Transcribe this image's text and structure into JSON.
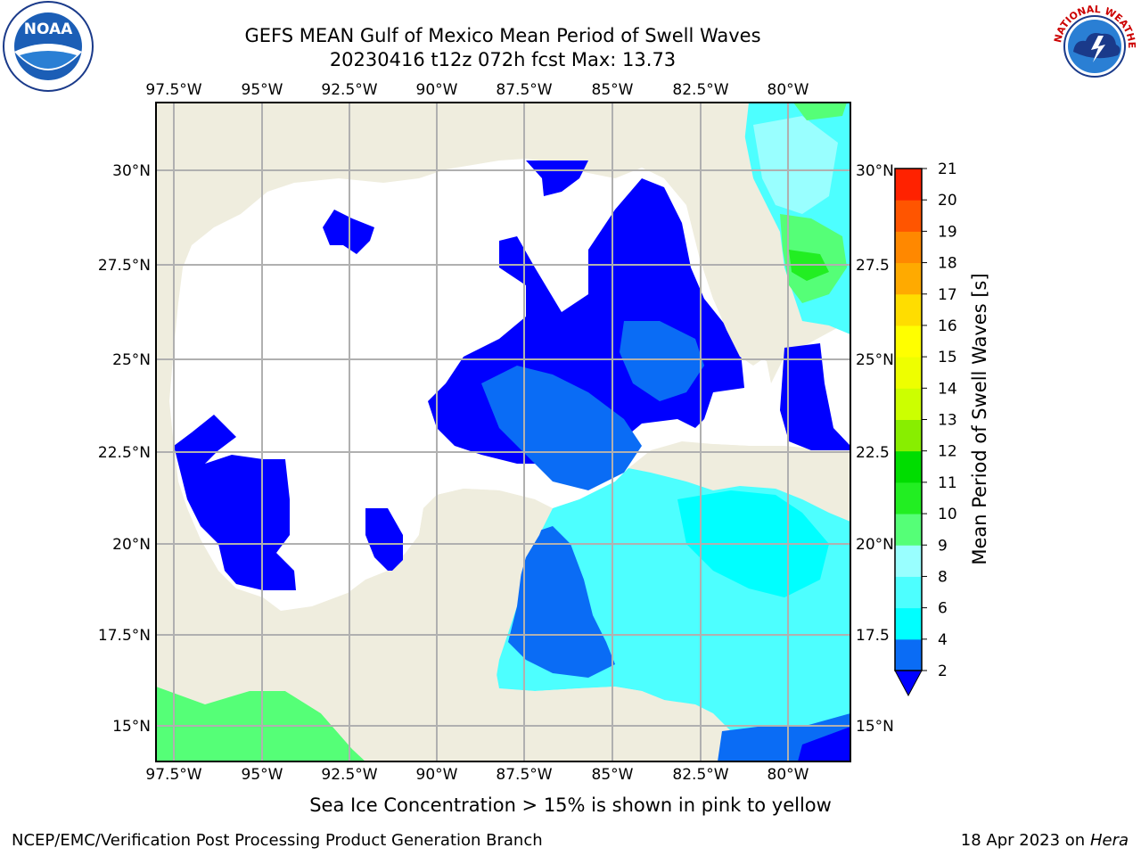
{
  "title": {
    "line1": "GEFS MEAN Gulf of Mexico Mean Period of Swell Waves",
    "line2": "20230416 t12z 072h fcst    Max: 13.73"
  },
  "logos": {
    "left": {
      "icon": "noaa-logo",
      "text": "NOAA"
    },
    "right": {
      "icon": "nws-logo",
      "text": "NATIONAL WEATHER SERVICE"
    }
  },
  "map": {
    "lon_labels": [
      "97.5°W",
      "95°W",
      "92.5°W",
      "90°W",
      "87.5°W",
      "85°W",
      "82.5°W",
      "80°W"
    ],
    "lat_labels_left": [
      "30°N",
      "27.5°N",
      "25°N",
      "22.5°N",
      "20°N",
      "17.5°N",
      "15°N"
    ],
    "lat_labels_right": [
      "30°N",
      "27.5",
      "25°N",
      "22.5",
      "20°N",
      "17.5",
      "15°N"
    ],
    "colors": {
      "land": "#efedde",
      "coast": "#000000",
      "grid": "#b0b0b0"
    }
  },
  "colorbar": {
    "label": "Mean Period of Swell Waves [s]",
    "ticks": [
      "2",
      "4",
      "6",
      "8",
      "9",
      "10",
      "11",
      "12",
      "13",
      "14",
      "15",
      "16",
      "17",
      "18",
      "19",
      "20",
      "21"
    ],
    "colors": [
      "#0000ff",
      "#0a6cf5",
      "#00ffff",
      "#4dffff",
      "#99ffff",
      "#55ff77",
      "#22ee22",
      "#00dd00",
      "#88ee00",
      "#ccff00",
      "#eeff00",
      "#ffff00",
      "#ffdd00",
      "#ffaa00",
      "#ff8800",
      "#ff5500",
      "#ff2200",
      "#ff0000"
    ]
  },
  "footer": {
    "sea_ice": "Sea Ice Concentration > 15% is shown in pink to yellow",
    "left": "NCEP/EMC/Verification Post Processing Product Generation Branch",
    "right_date": "18 Apr 2023 on ",
    "right_host": "Hera"
  }
}
